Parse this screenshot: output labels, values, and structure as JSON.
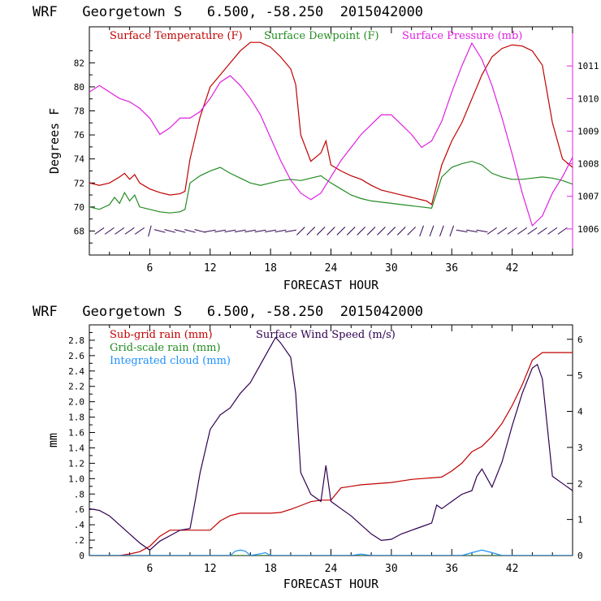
{
  "chart_data": [
    {
      "type": "line",
      "title": "WRF   Georgetown S   6.500, -58.250  2015042000",
      "xlabel": "FORECAST HOUR",
      "ylabel": "Degrees F",
      "xlim": [
        0,
        48
      ],
      "x_ticks": [
        6,
        12,
        18,
        24,
        30,
        36,
        42
      ],
      "ylim": [
        66,
        85
      ],
      "y_ticks": [
        68,
        70,
        72,
        74,
        76,
        78,
        80,
        82
      ],
      "y2_ticks": [
        1006,
        1007,
        1008,
        1009,
        1010,
        1011
      ],
      "y2lim": [
        1005.2,
        1012.2
      ],
      "legend": [
        {
          "label": "Surface Temperature (F)",
          "color": "#c00000"
        },
        {
          "label": "Surface Dewpoint (F)",
          "color": "#228b22"
        },
        {
          "label": "Surface Pressure (mb)",
          "color": "#e020e0"
        }
      ],
      "series": [
        {
          "name": "Surface Temperature (F)",
          "color": "#c00000",
          "axis": "left",
          "x": [
            0,
            1,
            2,
            3,
            3.5,
            4,
            4.5,
            5,
            6,
            7,
            8,
            9,
            9.5,
            10,
            11,
            12,
            13,
            14,
            15,
            16,
            17,
            18,
            19,
            20,
            20.5,
            21,
            22,
            23,
            23.5,
            24,
            25,
            26,
            27,
            28,
            29,
            30,
            31,
            32,
            33,
            33.5,
            34,
            35,
            36,
            37,
            38,
            39,
            40,
            41,
            42,
            43,
            44,
            45,
            46,
            47,
            48
          ],
          "y": [
            72.0,
            71.8,
            72.0,
            72.5,
            72.8,
            72.3,
            72.7,
            72.0,
            71.5,
            71.2,
            71.0,
            71.1,
            71.3,
            74.0,
            77.5,
            80.0,
            81.0,
            82.0,
            83.0,
            83.7,
            83.7,
            83.3,
            82.5,
            81.5,
            80.2,
            76.0,
            73.8,
            74.5,
            75.5,
            73.5,
            73.0,
            72.6,
            72.3,
            71.8,
            71.4,
            71.2,
            71.0,
            70.8,
            70.6,
            70.5,
            70.2,
            73.5,
            75.5,
            77.0,
            79.0,
            81.0,
            82.5,
            83.2,
            83.5,
            83.4,
            83.0,
            81.8,
            77.0,
            74.0,
            73.3
          ]
        },
        {
          "name": "Surface Dewpoint (F)",
          "color": "#228b22",
          "axis": "left",
          "x": [
            0,
            1,
            2,
            2.5,
            3,
            3.5,
            4,
            4.5,
            5,
            6,
            7,
            8,
            9,
            9.5,
            10,
            11,
            12,
            13,
            14,
            15,
            16,
            17,
            18,
            19,
            20,
            21,
            22,
            23,
            24,
            25,
            26,
            27,
            28,
            29,
            30,
            31,
            32,
            33,
            34,
            35,
            36,
            37,
            38,
            39,
            40,
            41,
            42,
            43,
            44,
            45,
            46,
            47,
            48
          ],
          "y": [
            70.0,
            69.8,
            70.2,
            70.8,
            70.3,
            71.2,
            70.5,
            71.0,
            70.0,
            69.8,
            69.6,
            69.5,
            69.6,
            69.8,
            72.0,
            72.6,
            73.0,
            73.3,
            72.8,
            72.4,
            72.0,
            71.8,
            72.0,
            72.2,
            72.3,
            72.2,
            72.4,
            72.6,
            72.0,
            71.5,
            71.0,
            70.7,
            70.5,
            70.4,
            70.3,
            70.2,
            70.1,
            70.0,
            69.9,
            72.5,
            73.3,
            73.6,
            73.8,
            73.5,
            72.8,
            72.5,
            72.3,
            72.3,
            72.4,
            72.5,
            72.4,
            72.2,
            71.9
          ]
        },
        {
          "name": "Surface Pressure (mb)",
          "color": "#e020e0",
          "axis": "right",
          "x": [
            0,
            1,
            2,
            3,
            4,
            5,
            6,
            7,
            8,
            9,
            10,
            11,
            12,
            13,
            14,
            15,
            16,
            17,
            18,
            19,
            20,
            21,
            22,
            23,
            24,
            25,
            26,
            27,
            28,
            29,
            30,
            31,
            32,
            33,
            34,
            35,
            36,
            37,
            38,
            39,
            40,
            41,
            42,
            43,
            44,
            45,
            46,
            47,
            48
          ],
          "y": [
            1010.2,
            1010.4,
            1010.2,
            1010.0,
            1009.9,
            1009.7,
            1009.4,
            1008.9,
            1009.1,
            1009.4,
            1009.4,
            1009.6,
            1010.0,
            1010.5,
            1010.7,
            1010.4,
            1010.0,
            1009.5,
            1008.8,
            1008.1,
            1007.5,
            1007.1,
            1006.9,
            1007.1,
            1007.6,
            1008.1,
            1008.5,
            1008.9,
            1009.2,
            1009.5,
            1009.5,
            1009.2,
            1008.9,
            1008.5,
            1008.7,
            1009.3,
            1010.2,
            1011.0,
            1011.7,
            1011.2,
            1010.4,
            1009.4,
            1008.3,
            1007.1,
            1006.1,
            1006.4,
            1007.1,
            1007.6,
            1008.2
          ]
        }
      ],
      "wind_barbs_row": 68
    },
    {
      "type": "line",
      "title": "WRF   Georgetown S   6.500, -58.250  2015042000",
      "xlabel": "FORECAST HOUR",
      "ylabel": "mm",
      "xlim": [
        0,
        48
      ],
      "x_ticks": [
        6,
        12,
        18,
        24,
        30,
        36,
        42
      ],
      "ylim": [
        0,
        3.0
      ],
      "y_ticks": [
        "0",
        ".2",
        ".4",
        ".6",
        ".8",
        "1.0",
        "1.2",
        "1.4",
        "1.6",
        "1.8",
        "2.0",
        "2.2",
        "2.4",
        "2.6",
        "2.8"
      ],
      "y2lim": [
        0,
        6.4
      ],
      "y2_ticks": [
        0,
        1,
        2,
        3,
        4,
        5,
        6
      ],
      "legend": [
        {
          "label": "Sub-grid rain (mm)",
          "color": "#c00000"
        },
        {
          "label": "Surface Wind Speed (m/s)",
          "color": "#300050"
        },
        {
          "label": "Grid-scale rain (mm)",
          "color": "#228b22"
        },
        {
          "label": "Integrated cloud (mm)",
          "color": "#1e90ff"
        }
      ],
      "series": [
        {
          "name": "Sub-grid rain (mm)",
          "color": "#c00000",
          "axis": "left",
          "x": [
            0,
            2,
            3,
            4,
            5,
            6,
            7,
            8,
            9,
            10,
            11,
            12,
            13,
            14,
            15,
            16,
            17,
            18,
            19,
            20,
            21,
            22,
            23,
            24,
            25,
            26,
            27,
            28,
            29,
            30,
            31,
            32,
            33,
            34,
            35,
            36,
            37,
            38,
            39,
            40,
            41,
            42,
            43,
            44,
            45,
            46,
            47,
            48
          ],
          "y": [
            0,
            0,
            0,
            0.02,
            0.05,
            0.12,
            0.25,
            0.33,
            0.33,
            0.33,
            0.33,
            0.33,
            0.45,
            0.52,
            0.55,
            0.55,
            0.55,
            0.55,
            0.56,
            0.6,
            0.65,
            0.7,
            0.72,
            0.72,
            0.88,
            0.9,
            0.92,
            0.93,
            0.94,
            0.95,
            0.97,
            0.99,
            1.0,
            1.01,
            1.02,
            1.1,
            1.2,
            1.35,
            1.42,
            1.55,
            1.72,
            1.95,
            2.22,
            2.54,
            2.64,
            2.64,
            2.64,
            2.64
          ]
        },
        {
          "name": "Surface Wind Speed (m/s)",
          "color": "#300050",
          "axis": "right",
          "x": [
            0,
            1,
            2,
            3,
            4,
            5,
            6,
            7,
            8,
            9,
            10,
            10.5,
            11,
            12,
            13,
            14,
            15,
            16,
            17,
            18,
            18.5,
            19,
            20,
            20.5,
            21,
            22,
            23,
            23.5,
            24,
            25,
            26,
            27,
            28,
            29,
            30,
            31,
            32,
            33,
            34,
            34.5,
            35,
            36,
            37,
            38,
            38.5,
            39,
            40,
            41,
            42,
            43,
            44,
            44.5,
            45,
            46,
            47,
            48
          ],
          "y": [
            1.3,
            1.25,
            1.1,
            0.85,
            0.6,
            0.35,
            0.15,
            0.4,
            0.55,
            0.7,
            0.75,
            1.5,
            2.3,
            3.5,
            3.9,
            4.1,
            4.5,
            4.8,
            5.3,
            5.8,
            6.05,
            5.9,
            5.5,
            4.5,
            2.3,
            1.7,
            1.5,
            2.5,
            1.5,
            1.3,
            1.1,
            0.85,
            0.6,
            0.42,
            0.45,
            0.6,
            0.7,
            0.8,
            0.9,
            1.4,
            1.3,
            1.5,
            1.7,
            1.8,
            2.2,
            2.4,
            1.9,
            2.6,
            3.6,
            4.5,
            5.2,
            5.3,
            4.9,
            2.2,
            2.0,
            1.8
          ]
        },
        {
          "name": "Grid-scale rain (mm)",
          "color": "#228b22",
          "axis": "left",
          "x": [
            0,
            48
          ],
          "y": [
            0,
            0
          ]
        },
        {
          "name": "Integrated cloud (mm)",
          "color": "#1e90ff",
          "axis": "right",
          "x": [
            0,
            14,
            14.5,
            15,
            15.5,
            16,
            17,
            17.5,
            18,
            24,
            26,
            27,
            28,
            36,
            37,
            38,
            39,
            40,
            41,
            48
          ],
          "y": [
            0,
            0,
            0.12,
            0.15,
            0.12,
            0.0,
            0.05,
            0.08,
            0,
            0,
            0,
            0.04,
            0,
            0,
            0,
            0.08,
            0.15,
            0.08,
            0,
            0
          ]
        }
      ]
    }
  ]
}
